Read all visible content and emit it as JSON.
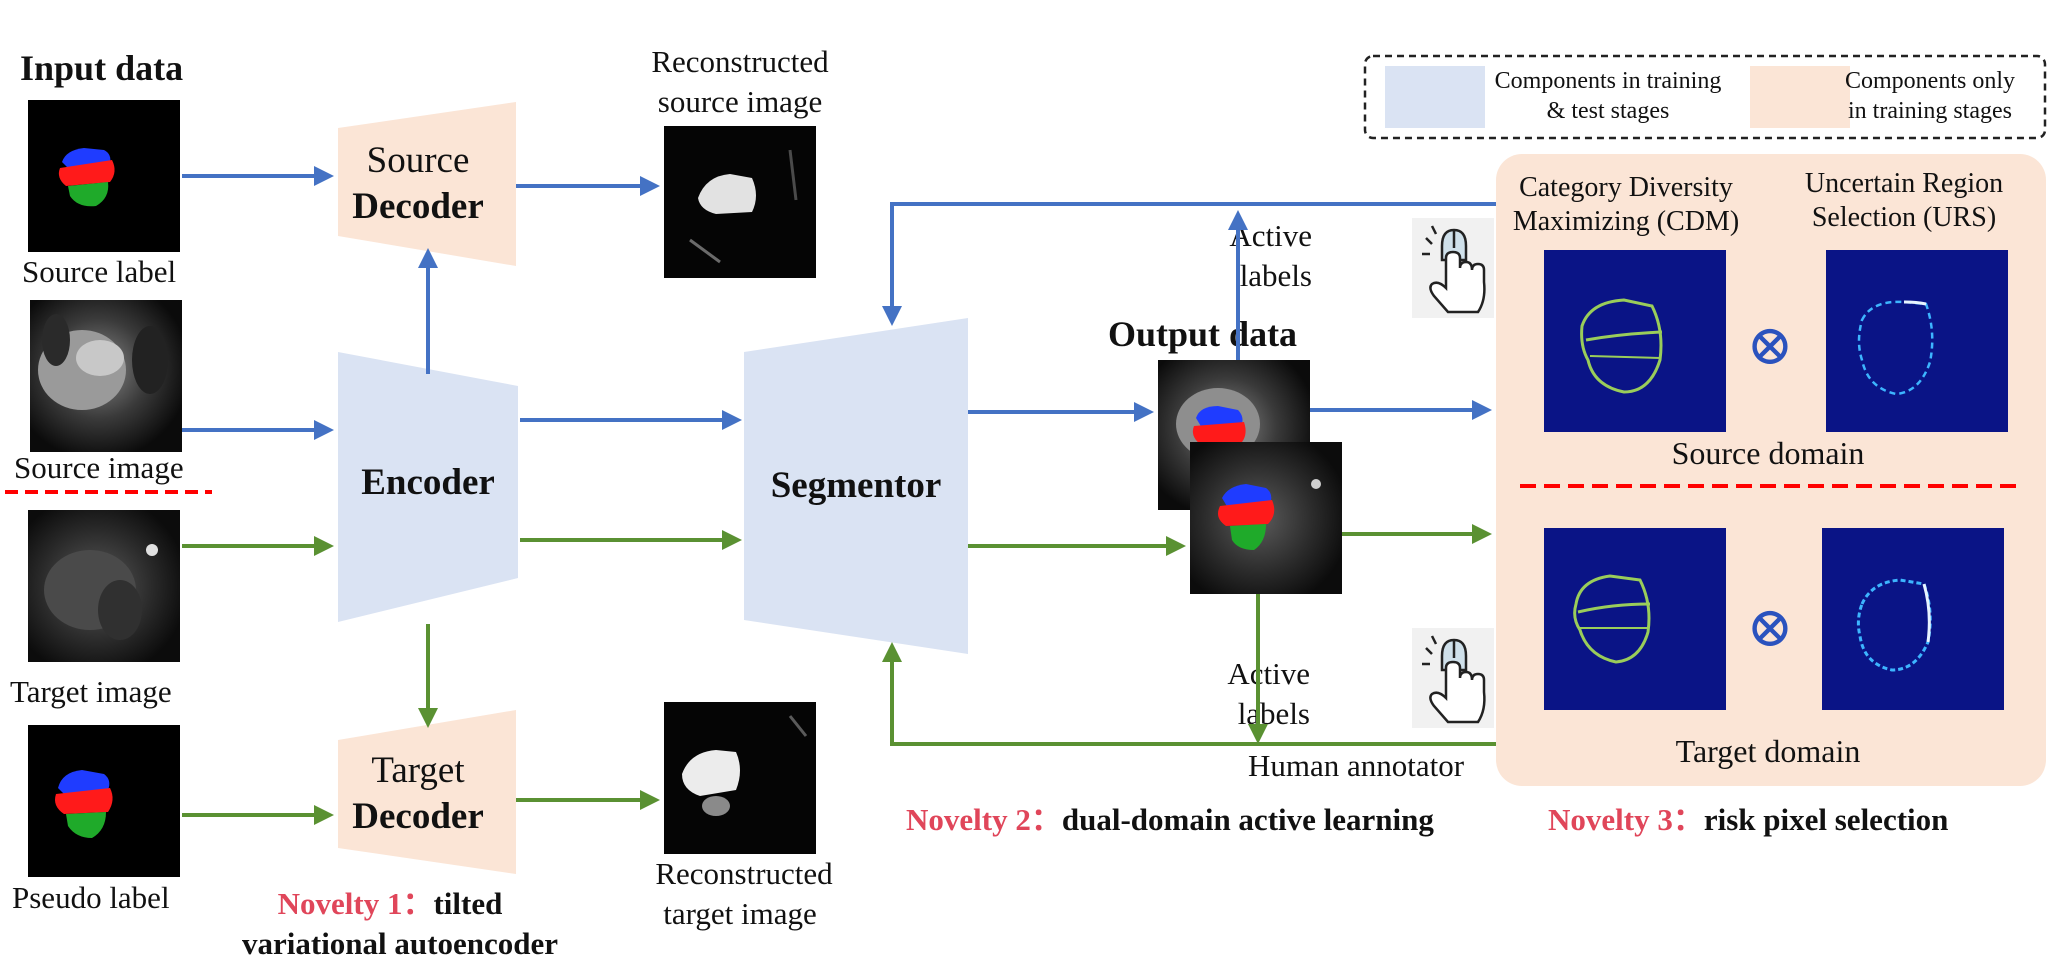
{
  "colors": {
    "blue_arrow": "#4472C4",
    "green_arrow": "#5A9132",
    "blue_component": "#DAE3F3",
    "orange_component": "#FBE5D6",
    "novelty_red": "#E0465A",
    "divider_red": "#FF0000",
    "heatmap_bg": "#0A1486"
  },
  "legend": {
    "training_test_line1": "Components in training",
    "training_test_line2": "& test stages",
    "training_only_line1": "Components only",
    "training_only_line2": "in training stages"
  },
  "input": {
    "title": "Input data",
    "source_label": "Source label",
    "source_image": "Source image",
    "target_image": "Target image",
    "pseudo_label": "Pseudo label"
  },
  "blocks": {
    "source_decoder_line1": "Source",
    "source_decoder_line2": "Decoder",
    "target_decoder_line1": "Target",
    "target_decoder_line2": "Decoder",
    "encoder": "Encoder",
    "segmentor": "Segmentor"
  },
  "recon": {
    "source_line1": "Reconstructed",
    "source_line2": "source image",
    "target_line1": "Reconstructed",
    "target_line2": "target image"
  },
  "output": {
    "title": "Output data",
    "active_labels_line1": "Active",
    "active_labels_line2": "labels",
    "human_annotator": "Human annotator"
  },
  "selection": {
    "cdm_line1": "Category Diversity",
    "cdm_line2": "Maximizing (CDM)",
    "urs_line1": "Uncertain Region",
    "urs_line2": "Selection (URS)",
    "source_domain": "Source domain",
    "target_domain": "Target domain",
    "otimes": "⊗"
  },
  "novelty": {
    "n1_prefix": "Novelty 1：",
    "n1_text_line1": "tilted",
    "n1_text_line2": "variational autoencoder",
    "n2_prefix": "Novelty 2：",
    "n2_text": "dual-domain active learning",
    "n3_prefix": "Novelty 3：",
    "n3_text": "risk pixel selection"
  },
  "icons": {
    "mouse_hand": "hand-click-mouse-icon",
    "otimes": "otimes-icon"
  }
}
